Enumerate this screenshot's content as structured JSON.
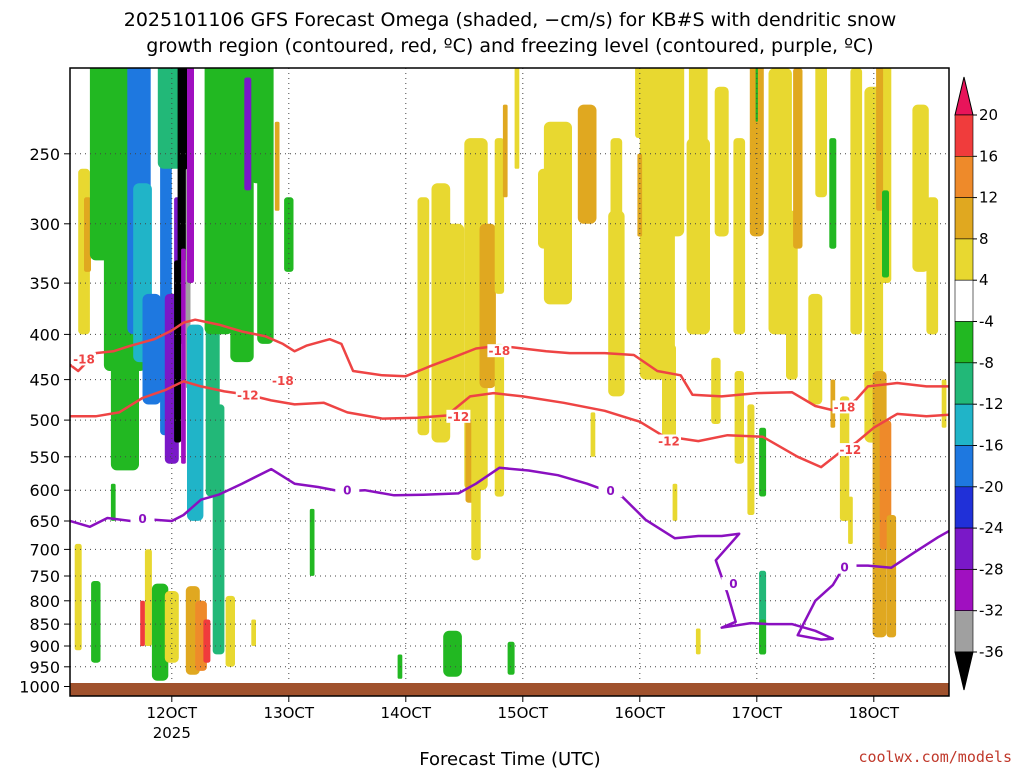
{
  "chart_data": {
    "type": "heatmap",
    "title_line1": "2025101106 GFS Forecast Omega (shaded, −cm/s) for KB#S with dendritic snow",
    "title_line2": "growth region (contoured, red, ºC) and freezing level (contoured, purple, ºC)",
    "xlabel": "Forecast Time (UTC)",
    "credit": "coolwx.com/models",
    "x_ticks": [
      "12OCT",
      "13OCT",
      "14OCT",
      "15OCT",
      "16OCT",
      "17OCT",
      "18OCT"
    ],
    "x_year_label": "2025",
    "x_range_days": [
      11.13,
      18.75
    ],
    "y_ticks": [
      "250",
      "300",
      "350",
      "400",
      "450",
      "500",
      "550",
      "600",
      "650",
      "700",
      "750",
      "800",
      "850",
      "900",
      "950",
      "1000"
    ],
    "y_range_hpa": [
      200,
      1025
    ],
    "colorbar": {
      "labels": [
        "20",
        "16",
        "12",
        "8",
        "4",
        "-4",
        "-8",
        "-12",
        "-16",
        "-20",
        "-24",
        "-28",
        "-32",
        "-36"
      ],
      "colors": [
        "#e8145a",
        "#f03c3c",
        "#ee8a2a",
        "#e0a820",
        "#e8d830",
        "#ffffff",
        "#22b822",
        "#22b878",
        "#20b4c8",
        "#1e78e0",
        "#2030d8",
        "#7a18c8",
        "#a010c0",
        "#a0a0a0",
        "#000000"
      ]
    },
    "shading_colors": {
      "yellow": "#e8d830",
      "gold": "#e0a820",
      "orange": "#ee8a2a",
      "red": "#f03c3c",
      "green": "#22b822",
      "teal": "#22b878",
      "cyan": "#20b4c8",
      "blue": "#1e78e0",
      "violet": "#7a18c8",
      "purple": "#a010c0",
      "gray": "#a0a0a0",
      "black": "#000000"
    },
    "contour_colors": {
      "dgz": "#ee4444",
      "freezing": "#8a10c0",
      "terrain": "#a0522d"
    },
    "contour_labels": {
      "neg18": "-18",
      "neg12": "-12",
      "zero": "0"
    },
    "contours": [
      {
        "name": "-18 C isotherm",
        "label_pos": [
          [
            11.25,
            428
          ],
          [
            12.95,
            453
          ],
          [
            14.8,
            419
          ],
          [
            17.75,
            485
          ]
        ],
        "points": [
          [
            11.13,
            433
          ],
          [
            11.2,
            440
          ],
          [
            11.35,
            420
          ],
          [
            11.5,
            418
          ],
          [
            11.65,
            412
          ],
          [
            11.85,
            405
          ],
          [
            12.0,
            396
          ],
          [
            12.1,
            388
          ],
          [
            12.2,
            385
          ],
          [
            12.4,
            390
          ],
          [
            12.6,
            397
          ],
          [
            12.8,
            402
          ],
          [
            12.95,
            410
          ],
          [
            13.05,
            418
          ],
          [
            13.15,
            412
          ],
          [
            13.35,
            405
          ],
          [
            13.45,
            410
          ],
          [
            13.55,
            440
          ],
          [
            13.8,
            445
          ],
          [
            14.0,
            446
          ],
          [
            14.2,
            435
          ],
          [
            14.4,
            425
          ],
          [
            14.6,
            415
          ],
          [
            14.8,
            412
          ],
          [
            15.0,
            415
          ],
          [
            15.2,
            418
          ],
          [
            15.4,
            420
          ],
          [
            15.7,
            420
          ],
          [
            15.95,
            422
          ],
          [
            16.15,
            440
          ],
          [
            16.35,
            445
          ],
          [
            16.45,
            468
          ],
          [
            16.7,
            470
          ],
          [
            17.0,
            466
          ],
          [
            17.3,
            465
          ],
          [
            17.5,
            482
          ],
          [
            17.7,
            489
          ],
          [
            17.85,
            474
          ],
          [
            17.95,
            458
          ],
          [
            18.2,
            454
          ],
          [
            18.45,
            458
          ],
          [
            18.75,
            458
          ]
        ]
      },
      {
        "name": "-12 C isotherm",
        "label_pos": [
          [
            12.65,
            470
          ],
          [
            14.45,
            497
          ],
          [
            16.25,
            530
          ],
          [
            17.8,
            542
          ]
        ],
        "points": [
          [
            11.13,
            495
          ],
          [
            11.35,
            495
          ],
          [
            11.55,
            490
          ],
          [
            11.75,
            472
          ],
          [
            11.95,
            462
          ],
          [
            12.1,
            452
          ],
          [
            12.25,
            458
          ],
          [
            12.45,
            464
          ],
          [
            12.65,
            468
          ],
          [
            12.85,
            475
          ],
          [
            13.05,
            480
          ],
          [
            13.3,
            478
          ],
          [
            13.5,
            490
          ],
          [
            13.8,
            498
          ],
          [
            14.1,
            497
          ],
          [
            14.35,
            494
          ],
          [
            14.55,
            470
          ],
          [
            14.75,
            466
          ],
          [
            15.0,
            470
          ],
          [
            15.35,
            478
          ],
          [
            15.7,
            488
          ],
          [
            16.0,
            502
          ],
          [
            16.2,
            521
          ],
          [
            16.5,
            528
          ],
          [
            16.75,
            520
          ],
          [
            17.05,
            522
          ],
          [
            17.35,
            550
          ],
          [
            17.55,
            565
          ],
          [
            17.7,
            545
          ],
          [
            17.85,
            530
          ],
          [
            18.0,
            510
          ],
          [
            18.2,
            492
          ],
          [
            18.45,
            495
          ],
          [
            18.75,
            492
          ]
        ]
      },
      {
        "name": "0 C freezing level",
        "label_pos": [
          [
            11.75,
            648
          ],
          [
            13.5,
            602
          ],
          [
            15.75,
            603
          ],
          [
            16.8,
            768
          ],
          [
            17.75,
            736
          ]
        ],
        "points": [
          [
            11.13,
            650
          ],
          [
            11.3,
            660
          ],
          [
            11.45,
            645
          ],
          [
            11.65,
            650
          ],
          [
            11.85,
            648
          ],
          [
            12.0,
            650
          ],
          [
            12.1,
            640
          ],
          [
            12.25,
            615
          ],
          [
            12.4,
            607
          ],
          [
            12.6,
            590
          ],
          [
            12.85,
            568
          ],
          [
            13.05,
            590
          ],
          [
            13.25,
            595
          ],
          [
            13.45,
            602
          ],
          [
            13.65,
            600
          ],
          [
            13.9,
            608
          ],
          [
            14.15,
            607
          ],
          [
            14.45,
            605
          ],
          [
            14.6,
            590
          ],
          [
            14.8,
            566
          ],
          [
            15.05,
            570
          ],
          [
            15.3,
            577
          ],
          [
            15.55,
            590
          ],
          [
            15.85,
            610
          ],
          [
            16.05,
            648
          ],
          [
            16.3,
            680
          ],
          [
            16.5,
            676
          ],
          [
            16.7,
            676
          ],
          [
            16.85,
            672
          ],
          [
            16.65,
            720
          ],
          [
            16.75,
            785
          ],
          [
            16.82,
            845
          ],
          [
            16.7,
            858
          ],
          [
            16.95,
            848
          ],
          [
            17.1,
            850
          ],
          [
            17.3,
            850
          ],
          [
            17.5,
            865
          ],
          [
            17.65,
            883
          ],
          [
            17.55,
            885
          ],
          [
            17.35,
            875
          ],
          [
            17.5,
            800
          ],
          [
            17.65,
            768
          ],
          [
            17.75,
            730
          ],
          [
            17.95,
            730
          ],
          [
            18.15,
            734
          ],
          [
            18.35,
            705
          ],
          [
            18.55,
            678
          ],
          [
            18.75,
            655
          ]
        ]
      }
    ]
  }
}
